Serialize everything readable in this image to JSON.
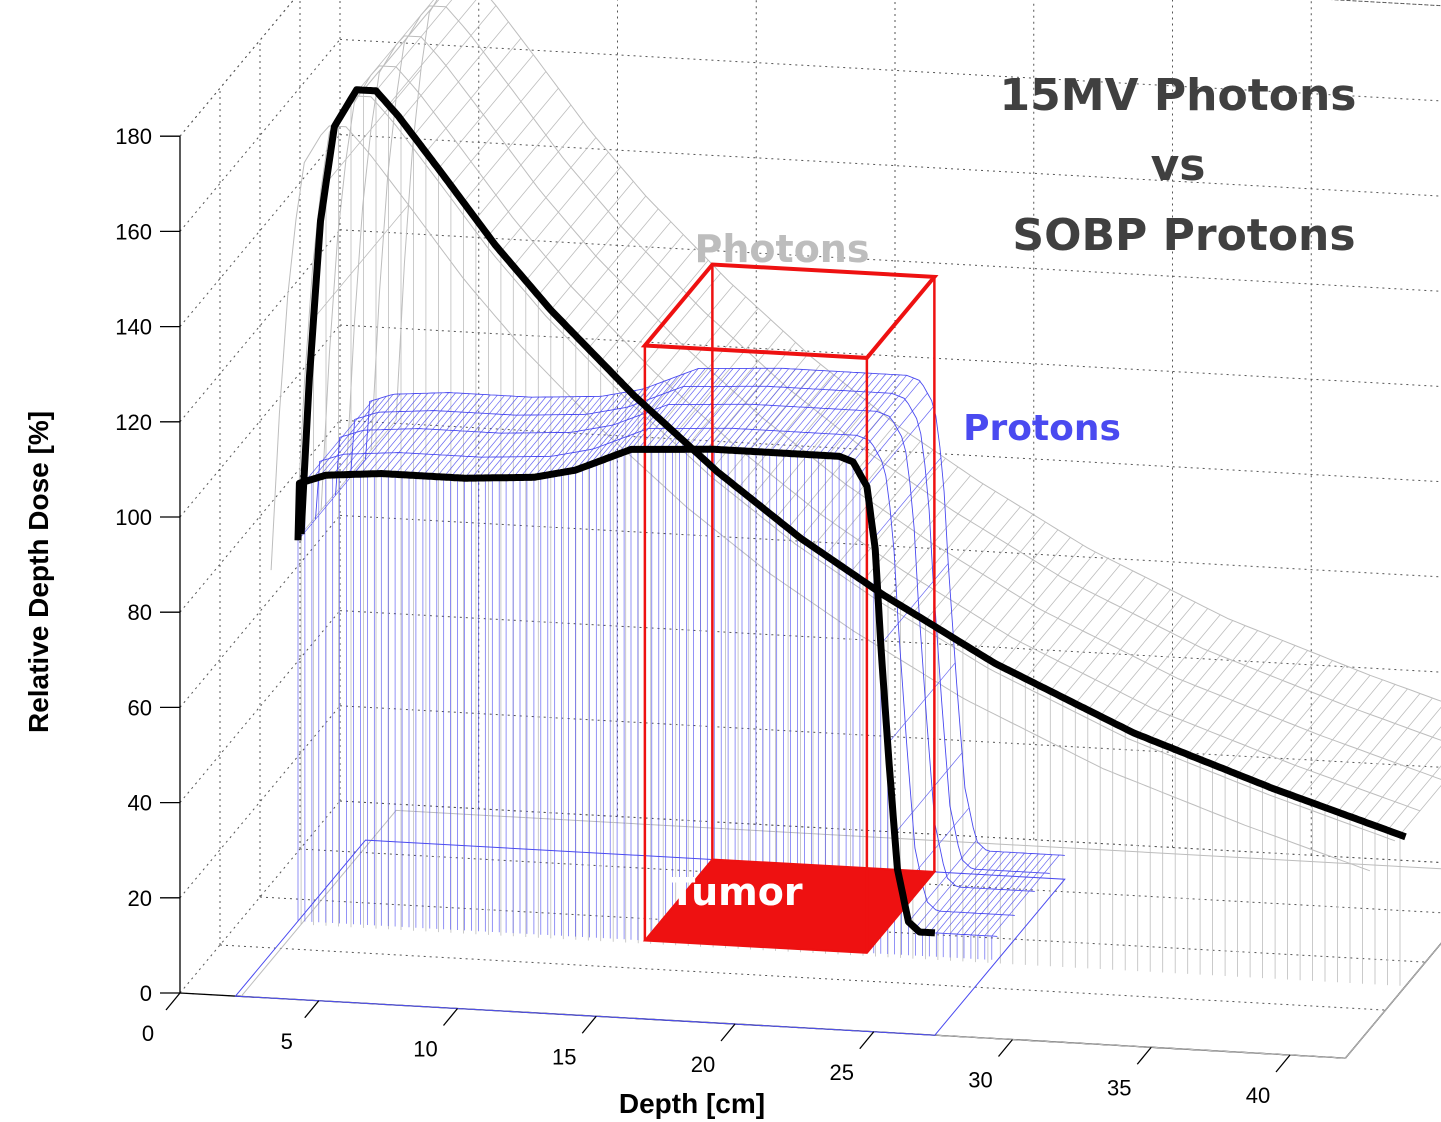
{
  "chart_data": {
    "type": "line",
    "title": [
      "15MV Photons",
      "vs",
      "SOBP Protons"
    ],
    "xlabel": "Depth [cm]",
    "ylabel": "Relative Depth Dose [%]",
    "xlim": [
      0,
      42
    ],
    "ylim": [
      0,
      180
    ],
    "x_ticks": [
      0,
      5,
      10,
      15,
      20,
      25,
      30,
      35,
      40
    ],
    "y_ticks": [
      0,
      20,
      40,
      60,
      80,
      100,
      120,
      140,
      160,
      180
    ],
    "grid": true,
    "view": "3d",
    "colors": {
      "photons": "#bdbdbd",
      "protons": "#4a4af0",
      "tumor": "#ee1111",
      "profile": "#000000",
      "title": "#404040"
    },
    "series": [
      {
        "name": "Photons",
        "x": [
          0,
          0.3,
          0.7,
          1.2,
          2,
          2.7,
          3.5,
          5,
          7,
          9,
          12,
          15,
          18,
          21,
          25,
          30,
          35,
          40
        ],
        "y": [
          82,
          115,
          148,
          168,
          176,
          176,
          171,
          160,
          145,
          132,
          115,
          100,
          87,
          76,
          63,
          50,
          40,
          31
        ]
      },
      {
        "name": "Protons",
        "x": [
          0,
          0.05,
          1,
          3,
          6,
          8.5,
          10,
          12,
          15,
          17.5,
          19.5,
          20,
          20.5,
          20.8,
          21,
          21.3,
          21.6,
          22,
          22.4,
          23
        ],
        "y": [
          80,
          92,
          94,
          95,
          95,
          96,
          98,
          103,
          104,
          104,
          104,
          103,
          98,
          85,
          65,
          40,
          18,
          7,
          5,
          5
        ]
      }
    ],
    "tumor": {
      "label": "Tumor",
      "depth_range": [
        12.5,
        20.5
      ],
      "dose_range": [
        0,
        125
      ]
    }
  }
}
